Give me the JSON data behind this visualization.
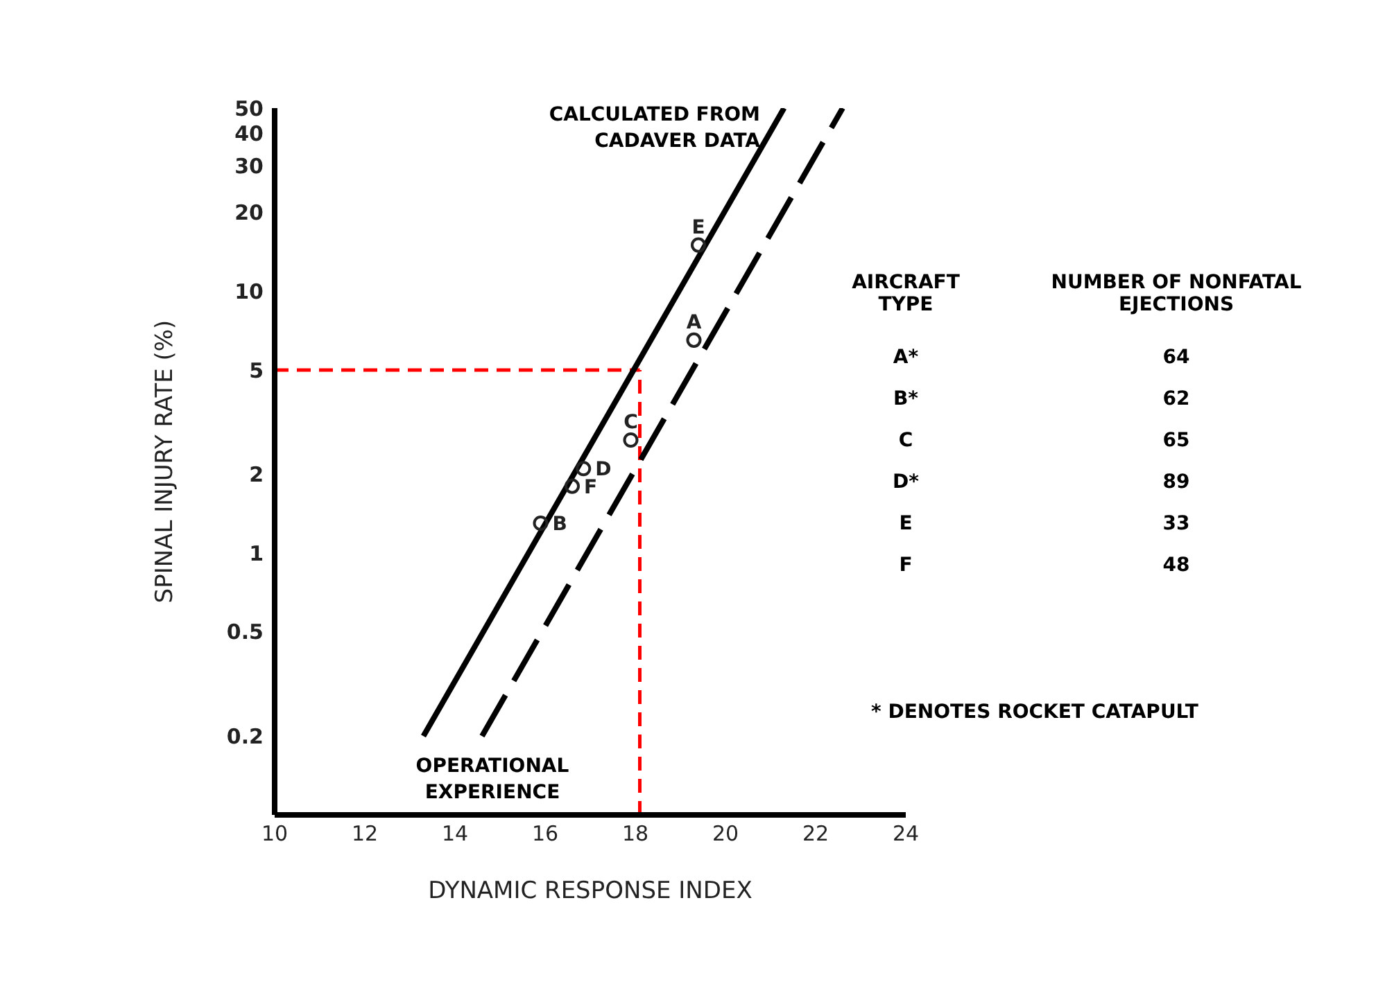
{
  "chart_data": {
    "type": "line",
    "xlabel": "DYNAMIC RESPONSE INDEX",
    "ylabel": "SPINAL INJURY RATE (%)",
    "xlim": [
      10,
      24
    ],
    "xticks": [
      10,
      12,
      14,
      16,
      18,
      20,
      22,
      24
    ],
    "ylim": [
      0.1,
      50
    ],
    "yticks": [
      0.2,
      0.5,
      1,
      2,
      5,
      10,
      20,
      30,
      40,
      50
    ],
    "log": "y",
    "series": [
      {
        "name": "CALCULATED FROM CADAVER DATA",
        "color": "#000000",
        "line_style": "solid",
        "x": [
          13.3,
          21.3
        ],
        "values": [
          0.2,
          50
        ]
      },
      {
        "name": "OPERATIONAL EXPERIENCE",
        "color": "#000000",
        "line_style": "dashed",
        "x": [
          14.6,
          22.6
        ],
        "values": [
          0.2,
          50
        ]
      },
      {
        "type": "scatter",
        "color": "#222222",
        "marker": "circle",
        "x": [
          15.9,
          16.6,
          16.85,
          17.9,
          19.3,
          19.4
        ],
        "values": [
          1.3,
          1.8,
          2.1,
          2.7,
          6.5,
          15
        ],
        "value_labels": [
          "B",
          "F",
          "D",
          "C",
          "A",
          "E"
        ]
      }
    ],
    "ref_lines": [
      {
        "axis": "y",
        "value": 5,
        "color": "#ff0000",
        "line_style": "dashed"
      },
      {
        "axis": "x",
        "value": 18.1,
        "color": "#ff0000",
        "line_style": "dashed"
      }
    ],
    "annotations": [
      "AIRCRAFT TYPE",
      "NUMBER OF NONFATAL EJECTIONS",
      "A*",
      "64",
      "B*",
      "62",
      "C",
      "65",
      "D*",
      "89",
      "E",
      "33",
      "F",
      "48",
      "* DENOTES ROCKET CATAPULT"
    ]
  }
}
